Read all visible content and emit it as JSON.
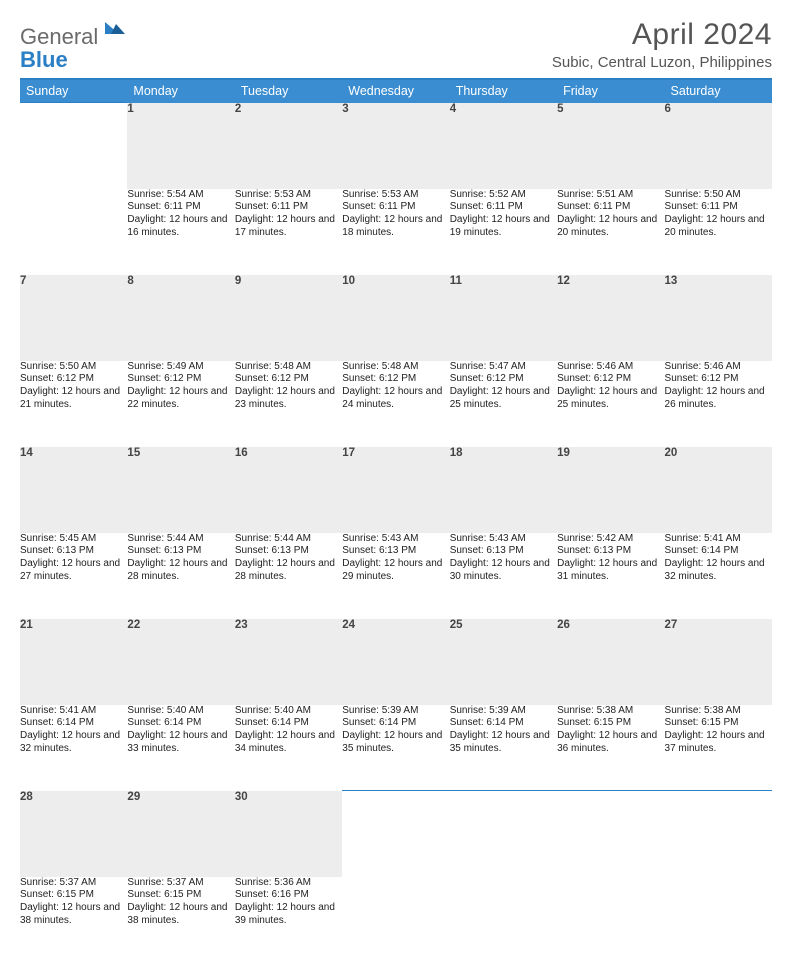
{
  "logo": {
    "general": "General",
    "blue": "Blue"
  },
  "title": "April 2024",
  "location": "Subic, Central Luzon, Philippines",
  "colors": {
    "header_bg": "#3a8dd0",
    "header_border": "#2a7fc5",
    "daynum_bg": "#ededed",
    "logo_blue": "#2a7fc5",
    "logo_gray": "#6b6b6b"
  },
  "weekdays": [
    "Sunday",
    "Monday",
    "Tuesday",
    "Wednesday",
    "Thursday",
    "Friday",
    "Saturday"
  ],
  "weeks": [
    {
      "nums": [
        "",
        "1",
        "2",
        "3",
        "4",
        "5",
        "6"
      ],
      "cells": [
        null,
        {
          "sr": "5:54 AM",
          "ss": "6:11 PM",
          "dl": "12 hours and 16 minutes."
        },
        {
          "sr": "5:53 AM",
          "ss": "6:11 PM",
          "dl": "12 hours and 17 minutes."
        },
        {
          "sr": "5:53 AM",
          "ss": "6:11 PM",
          "dl": "12 hours and 18 minutes."
        },
        {
          "sr": "5:52 AM",
          "ss": "6:11 PM",
          "dl": "12 hours and 19 minutes."
        },
        {
          "sr": "5:51 AM",
          "ss": "6:11 PM",
          "dl": "12 hours and 20 minutes."
        },
        {
          "sr": "5:50 AM",
          "ss": "6:11 PM",
          "dl": "12 hours and 20 minutes."
        }
      ]
    },
    {
      "nums": [
        "7",
        "8",
        "9",
        "10",
        "11",
        "12",
        "13"
      ],
      "cells": [
        {
          "sr": "5:50 AM",
          "ss": "6:12 PM",
          "dl": "12 hours and 21 minutes."
        },
        {
          "sr": "5:49 AM",
          "ss": "6:12 PM",
          "dl": "12 hours and 22 minutes."
        },
        {
          "sr": "5:48 AM",
          "ss": "6:12 PM",
          "dl": "12 hours and 23 minutes."
        },
        {
          "sr": "5:48 AM",
          "ss": "6:12 PM",
          "dl": "12 hours and 24 minutes."
        },
        {
          "sr": "5:47 AM",
          "ss": "6:12 PM",
          "dl": "12 hours and 25 minutes."
        },
        {
          "sr": "5:46 AM",
          "ss": "6:12 PM",
          "dl": "12 hours and 25 minutes."
        },
        {
          "sr": "5:46 AM",
          "ss": "6:12 PM",
          "dl": "12 hours and 26 minutes."
        }
      ]
    },
    {
      "nums": [
        "14",
        "15",
        "16",
        "17",
        "18",
        "19",
        "20"
      ],
      "cells": [
        {
          "sr": "5:45 AM",
          "ss": "6:13 PM",
          "dl": "12 hours and 27 minutes."
        },
        {
          "sr": "5:44 AM",
          "ss": "6:13 PM",
          "dl": "12 hours and 28 minutes."
        },
        {
          "sr": "5:44 AM",
          "ss": "6:13 PM",
          "dl": "12 hours and 28 minutes."
        },
        {
          "sr": "5:43 AM",
          "ss": "6:13 PM",
          "dl": "12 hours and 29 minutes."
        },
        {
          "sr": "5:43 AM",
          "ss": "6:13 PM",
          "dl": "12 hours and 30 minutes."
        },
        {
          "sr": "5:42 AM",
          "ss": "6:13 PM",
          "dl": "12 hours and 31 minutes."
        },
        {
          "sr": "5:41 AM",
          "ss": "6:14 PM",
          "dl": "12 hours and 32 minutes."
        }
      ]
    },
    {
      "nums": [
        "21",
        "22",
        "23",
        "24",
        "25",
        "26",
        "27"
      ],
      "cells": [
        {
          "sr": "5:41 AM",
          "ss": "6:14 PM",
          "dl": "12 hours and 32 minutes."
        },
        {
          "sr": "5:40 AM",
          "ss": "6:14 PM",
          "dl": "12 hours and 33 minutes."
        },
        {
          "sr": "5:40 AM",
          "ss": "6:14 PM",
          "dl": "12 hours and 34 minutes."
        },
        {
          "sr": "5:39 AM",
          "ss": "6:14 PM",
          "dl": "12 hours and 35 minutes."
        },
        {
          "sr": "5:39 AM",
          "ss": "6:14 PM",
          "dl": "12 hours and 35 minutes."
        },
        {
          "sr": "5:38 AM",
          "ss": "6:15 PM",
          "dl": "12 hours and 36 minutes."
        },
        {
          "sr": "5:38 AM",
          "ss": "6:15 PM",
          "dl": "12 hours and 37 minutes."
        }
      ]
    },
    {
      "nums": [
        "28",
        "29",
        "30",
        "",
        "",
        "",
        ""
      ],
      "cells": [
        {
          "sr": "5:37 AM",
          "ss": "6:15 PM",
          "dl": "12 hours and 38 minutes."
        },
        {
          "sr": "5:37 AM",
          "ss": "6:15 PM",
          "dl": "12 hours and 38 minutes."
        },
        {
          "sr": "5:36 AM",
          "ss": "6:16 PM",
          "dl": "12 hours and 39 minutes."
        },
        null,
        null,
        null,
        null
      ]
    }
  ],
  "labels": {
    "sunrise": "Sunrise:",
    "sunset": "Sunset:",
    "daylight": "Daylight:"
  }
}
